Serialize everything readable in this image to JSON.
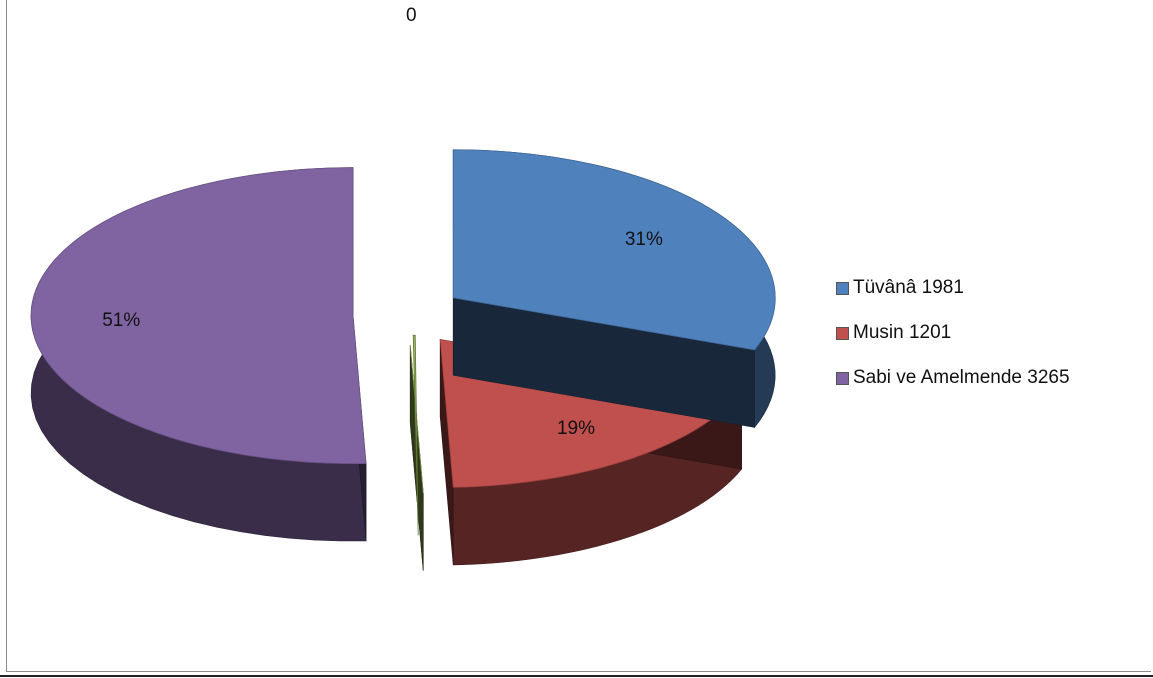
{
  "chart_data": {
    "type": "pie",
    "title": "",
    "labels": [
      "Tüvânâ 1981",
      "Musin 1201",
      "Sabi ve Amelmende 3265",
      ""
    ],
    "values": [
      1981,
      1201,
      3265,
      0
    ],
    "data_labels": [
      "31%",
      "19%",
      "51%",
      "0"
    ],
    "colors": [
      "#4f81bd",
      "#c0504d",
      "#8064a2",
      "#9bbb59"
    ],
    "legend_position": "right",
    "style": "3d-exploded"
  }
}
